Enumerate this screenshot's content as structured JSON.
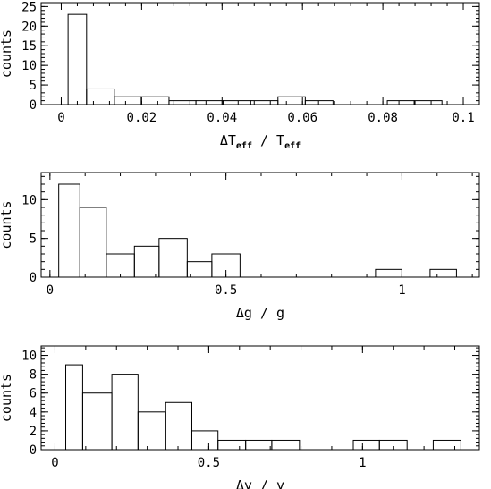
{
  "chart_data": [
    {
      "type": "histogram",
      "ylabel": "counts",
      "xlabel": {
        "prefix": "ΔT",
        "sub1": "eff",
        "mid": " / T",
        "sub2": "eff"
      },
      "xlim": [
        -0.005,
        0.104
      ],
      "ylim": [
        0,
        26
      ],
      "xticks": [
        0,
        0.02,
        0.04,
        0.06,
        0.08,
        0.1
      ],
      "xtick_labels": [
        "0",
        "0.02",
        "0.04",
        "0.06",
        "0.08",
        "0.1"
      ],
      "yticks": [
        0,
        5,
        10,
        15,
        20,
        25
      ],
      "ytick_labels": [
        "0",
        "5",
        "10",
        "15",
        "20",
        "25"
      ],
      "bins": [
        0.0017,
        0.0063,
        0.0132,
        0.0199,
        0.0268,
        0.0335,
        0.0403,
        0.0471,
        0.0539,
        0.0607,
        0.0676,
        0.0743,
        0.0811,
        0.0878,
        0.0947,
        0.1015
      ],
      "counts": [
        23,
        4,
        2,
        2,
        1,
        1,
        1,
        1,
        2,
        1,
        0,
        0,
        1,
        1,
        0
      ]
    },
    {
      "type": "histogram",
      "ylabel": "counts",
      "xlabel": {
        "prefix": "Δg / g"
      },
      "xlim": [
        -0.025,
        1.22
      ],
      "ylim": [
        0,
        13.5
      ],
      "xticks": [
        0,
        0.5,
        1
      ],
      "xtick_labels": [
        "0",
        "0.5",
        "1"
      ],
      "yticks": [
        0,
        5,
        10
      ],
      "ytick_labels": [
        "0",
        "5",
        "10"
      ],
      "bins": [
        0.025,
        0.085,
        0.16,
        0.24,
        0.31,
        0.39,
        0.46,
        0.54,
        0.62,
        0.695,
        0.77,
        0.85,
        0.925,
        1.0,
        1.08,
        1.155
      ],
      "counts": [
        12,
        9,
        3,
        4,
        5,
        2,
        3,
        0,
        0,
        0,
        0,
        0,
        1,
        0,
        1
      ]
    },
    {
      "type": "histogram",
      "ylabel": "counts",
      "xlabel": {
        "prefix": "Δy / y"
      },
      "xlim": [
        -0.045,
        1.38
      ],
      "ylim": [
        0,
        11
      ],
      "xticks": [
        0,
        0.5,
        1
      ],
      "xtick_labels": [
        "0",
        "0.5",
        "1"
      ],
      "yticks": [
        0,
        2,
        4,
        6,
        8,
        10
      ],
      "ytick_labels": [
        "0",
        "2",
        "4",
        "6",
        "8",
        "10"
      ],
      "bins": [
        0.035,
        0.09,
        0.185,
        0.27,
        0.36,
        0.445,
        0.53,
        0.62,
        0.705,
        0.795,
        0.88,
        0.97,
        1.055,
        1.145,
        1.23,
        1.32
      ],
      "counts": [
        9,
        6,
        8,
        4,
        5,
        2,
        1,
        1,
        1,
        0,
        0,
        1,
        1,
        0,
        1
      ]
    }
  ]
}
